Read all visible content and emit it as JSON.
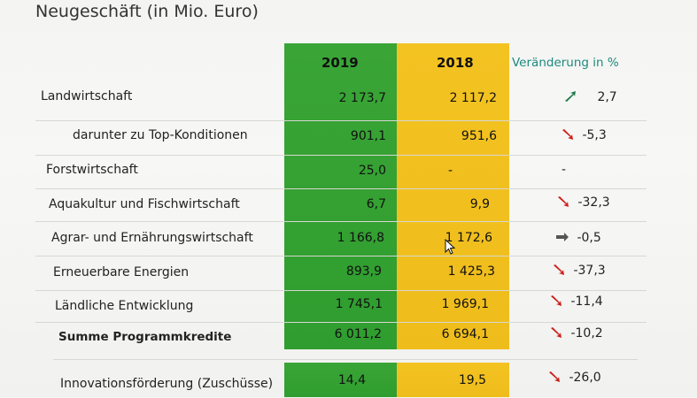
{
  "title": "Neugeschäft (in Mio. Euro)",
  "headers": {
    "y2019": "2019",
    "y2018": "2018",
    "change": "Veränderung in %"
  },
  "rows": [
    {
      "label": "Landwirtschaft",
      "v2019": "2 173,7",
      "v2018": "2 117,2",
      "change": "2,7",
      "trend": "up"
    },
    {
      "label": "darunter zu Top-Konditionen",
      "v2019": "901,1",
      "v2018": "951,6",
      "change": "-5,3",
      "trend": "down"
    },
    {
      "label": "Forstwirtschaft",
      "v2019": "25,0",
      "v2018": "-",
      "change": "-",
      "trend": "none"
    },
    {
      "label": "Aquakultur und Fischwirtschaft",
      "v2019": "6,7",
      "v2018": "9,9",
      "change": "-32,3",
      "trend": "down"
    },
    {
      "label": "Agrar- und Ernährungswirtschaft",
      "v2019": "1 166,8",
      "v2018": "1 172,6",
      "change": "-0,5",
      "trend": "flat"
    },
    {
      "label": "Erneuerbare Energien",
      "v2019": "893,9",
      "v2018": "1 425,3",
      "change": "-37,3",
      "trend": "down"
    },
    {
      "label": "Ländliche Entwicklung",
      "v2019": "1 745,1",
      "v2018": "1 969,1",
      "change": "-11,4",
      "trend": "down"
    },
    {
      "label": "Summe Programmkredite",
      "v2019": "6 011,2",
      "v2018": "6 694,1",
      "change": "-10,2",
      "trend": "down"
    }
  ],
  "extra_row": {
    "label": "Innovationsförderung  (Zuschüsse)",
    "v2019": "14,4",
    "v2018": "19,5",
    "change": "-26,0",
    "trend": "down"
  },
  "colors": {
    "green": "#2f9d2f",
    "yellow": "#efbd1b",
    "arrow_up": "#1e7a4a",
    "arrow_down": "#cc1f1a",
    "arrow_flat": "#555555",
    "header_teal": "#1c8a7e"
  },
  "icons": {
    "up": "arrow-up-right-icon",
    "down": "arrow-down-right-icon",
    "flat": "arrow-right-icon",
    "cursor": "mouse-pointer-icon"
  }
}
